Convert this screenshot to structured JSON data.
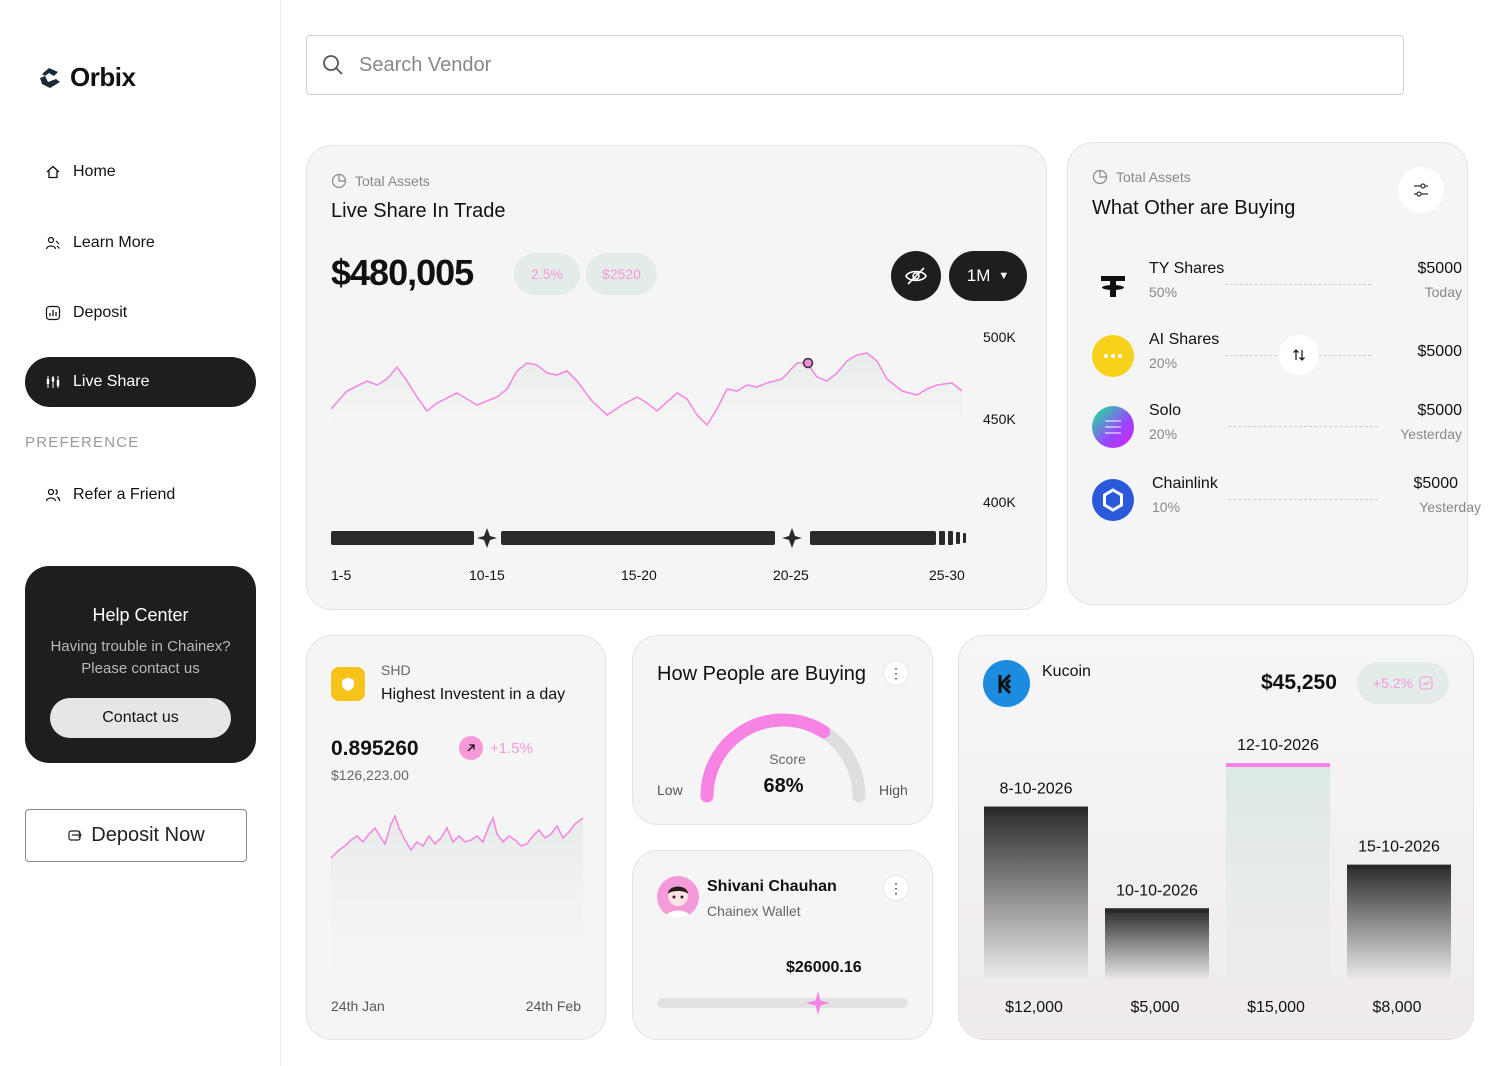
{
  "brand": {
    "name": "Orbix"
  },
  "nav": {
    "items": [
      {
        "label": "Home",
        "icon": "home-icon"
      },
      {
        "label": "Learn More",
        "icon": "users-icon"
      },
      {
        "label": "Deposit",
        "icon": "chart-box-icon"
      },
      {
        "label": "Live Share",
        "icon": "candles-icon",
        "active": true
      }
    ],
    "preference_label": "PREFERENCE",
    "refer": {
      "label": "Refer a Friend",
      "icon": "users-icon"
    }
  },
  "help": {
    "title": "Help Center",
    "line1": "Having trouble in Chainex?",
    "line2": "Please contact us",
    "button": "Contact us"
  },
  "deposit_now": {
    "label": "Deposit Now"
  },
  "search": {
    "placeholder": "Search Vendor"
  },
  "live_share": {
    "subtitle": "Total Assets",
    "title": "Live Share In Trade",
    "value": "$480,005",
    "pill_percent": "2.5%",
    "pill_amount": "$2520",
    "period": "1M",
    "y_ticks": [
      "500K",
      "450K",
      "400K"
    ],
    "x_ticks": [
      "1-5",
      "10-15",
      "15-20",
      "20-25",
      "25-30"
    ]
  },
  "buying": {
    "subtitle": "Total Assets",
    "title": "What Other are Buying",
    "assets": [
      {
        "name": "TY Shares",
        "percent": "50%",
        "amount": "$5000",
        "when": "Today",
        "icon": "tether-icon",
        "color": "#111111"
      },
      {
        "name": "AI Shares",
        "percent": "20%",
        "amount": "$5000",
        "when": "",
        "icon": "ai-coin-icon",
        "color": "#f7d21a"
      },
      {
        "name": "Solo",
        "percent": "20%",
        "amount": "$5000",
        "when": "Yesterday",
        "icon": "solana-icon",
        "color": "#9a4df0"
      },
      {
        "name": "Chainlink",
        "percent": "10%",
        "amount": "$5000",
        "when": "Yesterday",
        "icon": "chainlink-icon",
        "color": "#2a5ada"
      }
    ]
  },
  "shd": {
    "code": "SHD",
    "title": "Highest Investent in a day",
    "value": "0.895260",
    "change": "+1.5%",
    "amount": "$126,223.00",
    "start": "24th Jan",
    "end": "24th Feb"
  },
  "people": {
    "title": "How People are Buying",
    "score_label": "Score",
    "score": "68%",
    "score_value": 0.68,
    "low": "Low",
    "high": "High"
  },
  "wallet": {
    "name": "Shivani Chauhan",
    "type": "Chainex Wallet",
    "amount": "$26000.16",
    "slider_value": 0.64
  },
  "kucoin": {
    "name": "Kucoin",
    "value": "$45,250",
    "change": "+5.2%"
  },
  "chart_data": {
    "type": "bar",
    "categories": [
      "8-10-2026",
      "10-10-2026",
      "12-10-2026",
      "15-10-2026"
    ],
    "values": [
      12000,
      5000,
      15000,
      8000
    ],
    "value_labels": [
      "$12,000",
      "$5,000",
      "$15,000",
      "$8,000"
    ],
    "highlight_index": 2,
    "ylim": [
      0,
      16000
    ]
  },
  "colors": {
    "accent": "#f07fe0",
    "dark": "#1e1d20",
    "mint": "#e4ece9"
  }
}
